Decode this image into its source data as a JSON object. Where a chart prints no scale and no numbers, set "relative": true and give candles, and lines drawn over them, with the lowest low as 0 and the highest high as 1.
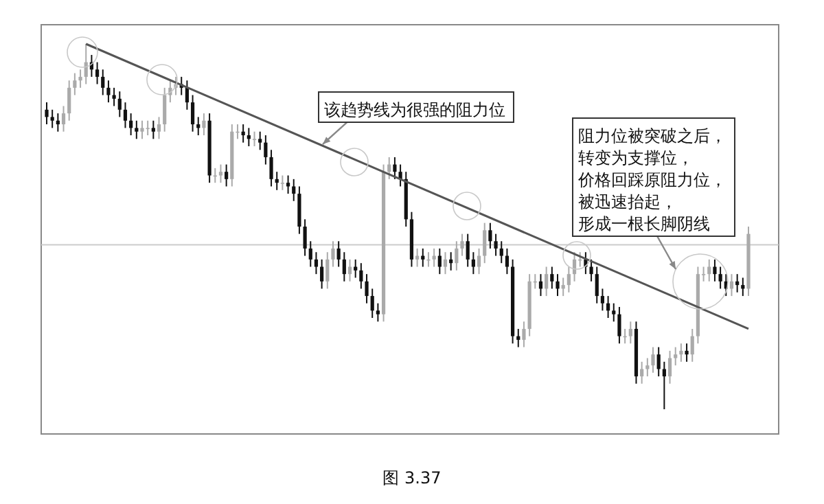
{
  "chart_data": {
    "type": "candlestick",
    "relative": true,
    "categories": [
      null,
      null,
      null,
      null,
      null,
      null,
      null,
      null,
      null,
      null,
      null,
      null,
      null,
      null,
      null,
      null,
      null,
      null,
      null,
      null,
      null,
      null,
      null,
      null,
      null,
      null,
      null,
      null,
      null,
      null,
      null,
      null,
      null,
      null,
      null,
      null,
      null,
      null,
      null,
      null,
      null,
      null,
      null,
      null,
      null,
      null,
      null,
      null,
      null,
      null,
      null,
      null,
      null,
      null,
      null,
      null,
      null,
      null,
      null,
      null,
      null,
      null,
      null,
      null,
      null,
      null,
      null,
      null,
      null,
      null,
      null,
      null,
      null,
      null,
      null,
      null,
      null,
      null,
      null,
      null,
      null,
      null,
      null,
      null,
      null,
      null,
      null,
      null,
      null,
      null,
      null,
      null,
      null,
      null,
      null,
      null,
      null,
      null,
      null,
      null,
      null,
      null,
      null,
      null,
      null,
      null,
      null,
      null,
      null,
      null,
      null,
      null,
      null,
      null,
      null,
      null,
      null,
      null,
      null,
      null,
      null,
      null,
      null,
      null,
      null,
      null
    ],
    "ohlc": [
      [
        0.82,
        0.84,
        0.78,
        0.8
      ],
      [
        0.8,
        0.82,
        0.77,
        0.79
      ],
      [
        0.79,
        0.81,
        0.76,
        0.78
      ],
      [
        0.78,
        0.83,
        0.76,
        0.81
      ],
      [
        0.81,
        0.9,
        0.79,
        0.88
      ],
      [
        0.88,
        0.92,
        0.86,
        0.9
      ],
      [
        0.9,
        0.93,
        0.88,
        0.91
      ],
      [
        0.91,
        1,
        0.89,
        0.95
      ],
      [
        0.95,
        0.97,
        0.91,
        0.93
      ],
      [
        0.93,
        0.95,
        0.89,
        0.91
      ],
      [
        0.91,
        0.93,
        0.86,
        0.88
      ],
      [
        0.88,
        0.9,
        0.84,
        0.86
      ],
      [
        0.86,
        0.88,
        0.83,
        0.85
      ],
      [
        0.85,
        0.87,
        0.8,
        0.82
      ],
      [
        0.82,
        0.84,
        0.77,
        0.79
      ],
      [
        0.79,
        0.81,
        0.75,
        0.77
      ],
      [
        0.77,
        0.79,
        0.74,
        0.76
      ],
      [
        0.76,
        0.79,
        0.74,
        0.77
      ],
      [
        0.77,
        0.79,
        0.75,
        0.77
      ],
      [
        0.77,
        0.79,
        0.74,
        0.76
      ],
      [
        0.76,
        0.8,
        0.74,
        0.78
      ],
      [
        0.78,
        0.88,
        0.76,
        0.86
      ],
      [
        0.86,
        0.9,
        0.84,
        0.88
      ],
      [
        0.88,
        0.91,
        0.86,
        0.89
      ],
      [
        0.89,
        0.91,
        0.86,
        0.88
      ],
      [
        0.88,
        0.9,
        0.82,
        0.84
      ],
      [
        0.84,
        0.86,
        0.76,
        0.78
      ],
      [
        0.78,
        0.8,
        0.75,
        0.77
      ],
      [
        0.77,
        0.81,
        0.75,
        0.79
      ],
      [
        0.79,
        0.81,
        0.62,
        0.64
      ],
      [
        0.64,
        0.66,
        0.62,
        0.64
      ],
      [
        0.64,
        0.67,
        0.62,
        0.65
      ],
      [
        0.65,
        0.67,
        0.61,
        0.63
      ],
      [
        0.63,
        0.78,
        0.61,
        0.76
      ],
      [
        0.76,
        0.78,
        0.74,
        0.76
      ],
      [
        0.76,
        0.78,
        0.73,
        0.75
      ],
      [
        0.75,
        0.77,
        0.72,
        0.74
      ],
      [
        0.74,
        0.76,
        0.72,
        0.74
      ],
      [
        0.74,
        0.76,
        0.71,
        0.73
      ],
      [
        0.73,
        0.75,
        0.67,
        0.69
      ],
      [
        0.69,
        0.71,
        0.61,
        0.63
      ],
      [
        0.63,
        0.65,
        0.6,
        0.62
      ],
      [
        0.62,
        0.64,
        0.6,
        0.62
      ],
      [
        0.62,
        0.64,
        0.59,
        0.61
      ],
      [
        0.61,
        0.63,
        0.57,
        0.59
      ],
      [
        0.59,
        0.61,
        0.48,
        0.5
      ],
      [
        0.5,
        0.52,
        0.42,
        0.44
      ],
      [
        0.44,
        0.46,
        0.39,
        0.41
      ],
      [
        0.41,
        0.43,
        0.37,
        0.39
      ],
      [
        0.39,
        0.41,
        0.33,
        0.35
      ],
      [
        0.35,
        0.43,
        0.33,
        0.41
      ],
      [
        0.41,
        0.46,
        0.39,
        0.44
      ],
      [
        0.44,
        0.46,
        0.39,
        0.41
      ],
      [
        0.41,
        0.43,
        0.35,
        0.37
      ],
      [
        0.37,
        0.41,
        0.35,
        0.39
      ],
      [
        0.39,
        0.41,
        0.36,
        0.38
      ],
      [
        0.38,
        0.4,
        0.33,
        0.35
      ],
      [
        0.35,
        0.37,
        0.29,
        0.31
      ],
      [
        0.31,
        0.33,
        0.25,
        0.27
      ],
      [
        0.27,
        0.29,
        0.24,
        0.26
      ],
      [
        0.26,
        0.67,
        0.24,
        0.65
      ],
      [
        0.65,
        0.69,
        0.63,
        0.67
      ],
      [
        0.67,
        0.69,
        0.63,
        0.65
      ],
      [
        0.65,
        0.67,
        0.61,
        0.63
      ],
      [
        0.63,
        0.65,
        0.5,
        0.52
      ],
      [
        0.52,
        0.54,
        0.39,
        0.41
      ],
      [
        0.41,
        0.44,
        0.39,
        0.42
      ],
      [
        0.42,
        0.44,
        0.39,
        0.41
      ],
      [
        0.41,
        0.43,
        0.39,
        0.41
      ],
      [
        0.41,
        0.44,
        0.39,
        0.42
      ],
      [
        0.42,
        0.44,
        0.37,
        0.39
      ],
      [
        0.39,
        0.43,
        0.37,
        0.41
      ],
      [
        0.41,
        0.43,
        0.38,
        0.4
      ],
      [
        0.4,
        0.46,
        0.38,
        0.44
      ],
      [
        0.44,
        0.48,
        0.42,
        0.46
      ],
      [
        0.46,
        0.48,
        0.39,
        0.41
      ],
      [
        0.41,
        0.43,
        0.37,
        0.39
      ],
      [
        0.39,
        0.44,
        0.37,
        0.42
      ],
      [
        0.42,
        0.51,
        0.4,
        0.49
      ],
      [
        0.49,
        0.51,
        0.44,
        0.46
      ],
      [
        0.46,
        0.48,
        0.42,
        0.44
      ],
      [
        0.44,
        0.46,
        0.4,
        0.42
      ],
      [
        0.42,
        0.44,
        0.37,
        0.39
      ],
      [
        0.39,
        0.41,
        0.18,
        0.2
      ],
      [
        0.2,
        0.22,
        0.17,
        0.19
      ],
      [
        0.19,
        0.24,
        0.17,
        0.22
      ],
      [
        0.22,
        0.37,
        0.2,
        0.35
      ],
      [
        0.35,
        0.37,
        0.33,
        0.35
      ],
      [
        0.35,
        0.37,
        0.31,
        0.33
      ],
      [
        0.33,
        0.39,
        0.31,
        0.37
      ],
      [
        0.37,
        0.39,
        0.33,
        0.35
      ],
      [
        0.35,
        0.37,
        0.31,
        0.33
      ],
      [
        0.33,
        0.36,
        0.31,
        0.34
      ],
      [
        0.34,
        0.39,
        0.32,
        0.37
      ],
      [
        0.37,
        0.43,
        0.35,
        0.41
      ],
      [
        0.41,
        0.43,
        0.39,
        0.41
      ],
      [
        0.41,
        0.43,
        0.37,
        0.39
      ],
      [
        0.39,
        0.41,
        0.35,
        0.37
      ],
      [
        0.37,
        0.39,
        0.29,
        0.31
      ],
      [
        0.31,
        0.33,
        0.27,
        0.29
      ],
      [
        0.29,
        0.31,
        0.25,
        0.27
      ],
      [
        0.27,
        0.29,
        0.24,
        0.26
      ],
      [
        0.26,
        0.28,
        0.18,
        0.2
      ],
      [
        0.2,
        0.22,
        0.18,
        0.2
      ],
      [
        0.2,
        0.24,
        0.18,
        0.22
      ],
      [
        0.22,
        0.24,
        0.07,
        0.09
      ],
      [
        0.09,
        0.13,
        0.07,
        0.11
      ],
      [
        0.11,
        0.14,
        0.09,
        0.12
      ],
      [
        0.12,
        0.17,
        0.1,
        0.15
      ],
      [
        0.15,
        0.17,
        0.09,
        0.11
      ],
      [
        0.11,
        0.13,
        0,
        0.09
      ],
      [
        0.09,
        0.16,
        0.07,
        0.14
      ],
      [
        0.14,
        0.17,
        0.12,
        0.15
      ],
      [
        0.15,
        0.18,
        0.13,
        0.16
      ],
      [
        0.16,
        0.18,
        0.13,
        0.15
      ],
      [
        0.15,
        0.22,
        0.13,
        0.2
      ],
      [
        0.2,
        0.39,
        0.18,
        0.37
      ],
      [
        0.37,
        0.39,
        0.35,
        0.37
      ],
      [
        0.37,
        0.41,
        0.35,
        0.39
      ],
      [
        0.39,
        0.41,
        0.35,
        0.37
      ],
      [
        0.37,
        0.39,
        0.33,
        0.35
      ],
      [
        0.35,
        0.37,
        0.31,
        0.33
      ],
      [
        0.33,
        0.37,
        0.31,
        0.35
      ],
      [
        0.35,
        0.37,
        0.32,
        0.34
      ],
      [
        0.34,
        0.36,
        0.31,
        0.33
      ],
      [
        0.33,
        0.5,
        0.31,
        0.48
      ]
    ],
    "series": [
      {
        "type": "line",
        "color": "#555555",
        "values": [
          null,
          null,
          null,
          null,
          null,
          null,
          null,
          1,
          null,
          null,
          null,
          null,
          null,
          null,
          null,
          null,
          null,
          null,
          null,
          null,
          null,
          null,
          null,
          null,
          null,
          null,
          null,
          null,
          null,
          null,
          null,
          null,
          null,
          null,
          null,
          null,
          null,
          null,
          null,
          null,
          null,
          null,
          null,
          null,
          null,
          null,
          null,
          null,
          null,
          null,
          null,
          null,
          null,
          null,
          null,
          null,
          null,
          null,
          null,
          null,
          null,
          null,
          null,
          null,
          null,
          null,
          null,
          null,
          null,
          null,
          null,
          null,
          null,
          null,
          null,
          null,
          null,
          null,
          null,
          null,
          null,
          null,
          null,
          null,
          null,
          null,
          null,
          null,
          null,
          null,
          null,
          null,
          null,
          null,
          null,
          null,
          null,
          null,
          null,
          null,
          null,
          null,
          null,
          null,
          null,
          null,
          null,
          null,
          null,
          null,
          null,
          null,
          null,
          null,
          null,
          null,
          null,
          null,
          null,
          null,
          null,
          null,
          null,
          null,
          null,
          0.22
        ]
      }
    ],
    "ref_lines": [
      {
        "axis": "y",
        "value": 0.45,
        "color": "#cccccc"
      }
    ],
    "annotations": [
      "该趋势线为很强的阻力位",
      "阻力位被突破之后，",
      "转变为支撑位，",
      "价格回踩原阻力位，",
      "被迅速抬起，",
      "形成一根长脚阴线",
      "图 3.37"
    ]
  }
}
